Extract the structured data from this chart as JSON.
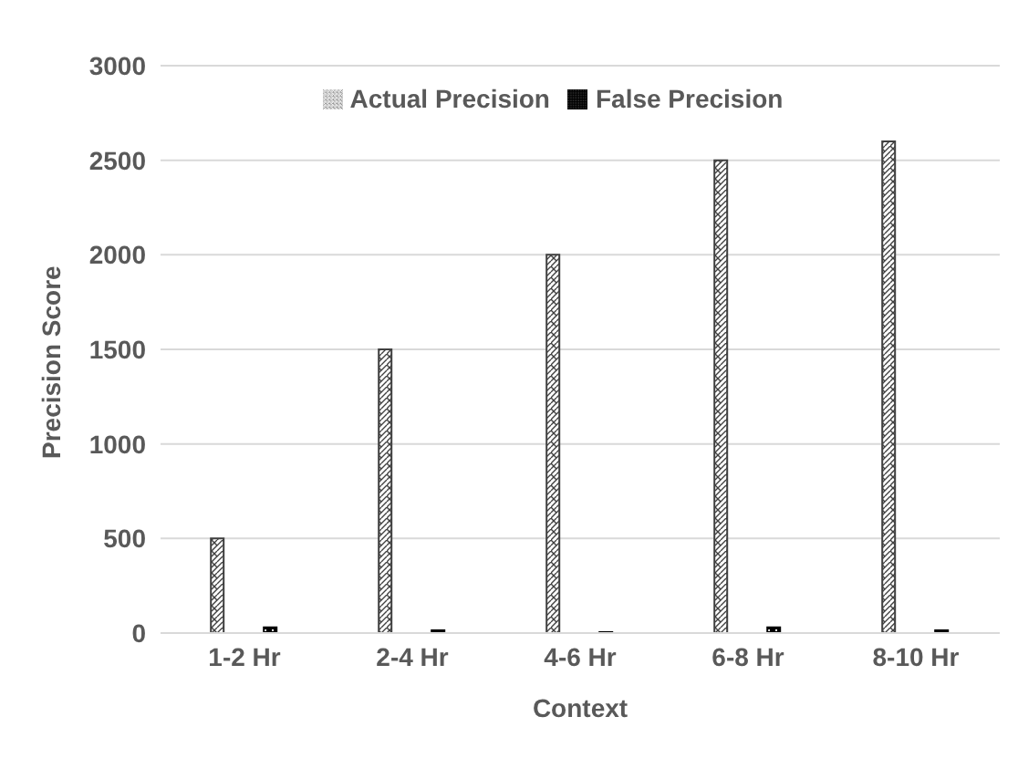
{
  "chart_data": {
    "type": "bar",
    "xlabel": "Context",
    "ylabel": "Precision Score",
    "categories": [
      "1-2 Hr",
      "2-4 Hr",
      "4-6 Hr",
      "6-8 Hr",
      "8-10 Hr"
    ],
    "series": [
      {
        "name": "Actual Precision",
        "color": "#404040",
        "values": [
          500,
          1500,
          2000,
          2500,
          2600
        ]
      },
      {
        "name": "False Precision",
        "color": "#000000",
        "values": [
          30,
          15,
          5,
          30,
          15
        ]
      }
    ],
    "ylim": [
      0,
      3000
    ],
    "yticks": [
      0,
      500,
      1000,
      1500,
      2000,
      2500,
      3000
    ],
    "grid": "y",
    "legend": "top"
  }
}
